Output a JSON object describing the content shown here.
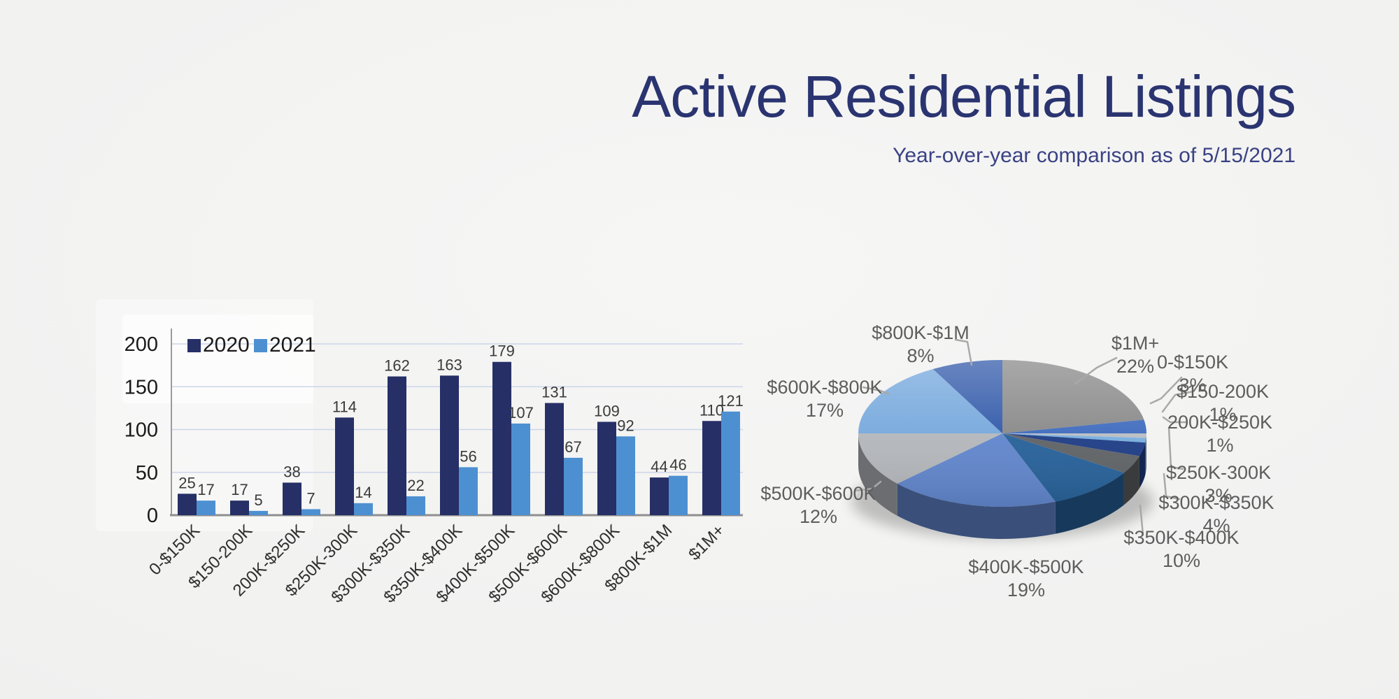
{
  "page": {
    "title": "Active Residential Listings",
    "subtitle": "Year-over-year comparison as of 5/15/2021"
  },
  "chart_data": [
    {
      "type": "bar",
      "title": "",
      "xlabel": "",
      "ylabel": "",
      "categories": [
        "0-$150K",
        "$150-200K",
        "200K-$250K",
        "$250K-300K",
        "$300K-$350K",
        "$350K-$400K",
        "$400K-$500K",
        "$500K-$600K",
        "$600K-$800K",
        "$800K-$1M",
        "$1M+"
      ],
      "series": [
        {
          "name": "2020",
          "color": "#262f66",
          "values": [
            25,
            17,
            38,
            114,
            162,
            163,
            179,
            131,
            109,
            44,
            110
          ]
        },
        {
          "name": "2021",
          "color": "#4d90d2",
          "values": [
            17,
            5,
            7,
            14,
            22,
            56,
            107,
            67,
            92,
            46,
            121
          ]
        }
      ],
      "ylim": [
        0,
        200
      ],
      "yticks": [
        0,
        50,
        100,
        150,
        200
      ],
      "grid": true,
      "legend_position": "top-left"
    },
    {
      "type": "pie",
      "style": "3d",
      "start_angle_deg": -10.8,
      "labels": [
        "0-$150K",
        "$150-200K",
        "200K-$250K",
        "$250K-300K",
        "$300K-$350K",
        "$350K-$400K",
        "$400K-$500K",
        "$500K-$600K",
        "$600K-$800K",
        "$800K-$1M",
        "$1M+"
      ],
      "values": [
        3,
        1,
        1,
        3,
        4,
        10,
        19,
        12,
        17,
        8,
        22
      ],
      "pct_labels": [
        "3%",
        "1%",
        "1%",
        "3%",
        "4%",
        "10%",
        "19%",
        "12%",
        "17%",
        "8%",
        "22%"
      ],
      "colors": [
        "#3c69bd",
        "#b9bdc2",
        "#78aede",
        "#1f3d85",
        "#5f6366",
        "#276199",
        "#6186cc",
        "#b3b6ba",
        "#74a7dc",
        "#2f57a8",
        "#878787"
      ],
      "callout_color": "#a9a9a9"
    }
  ]
}
